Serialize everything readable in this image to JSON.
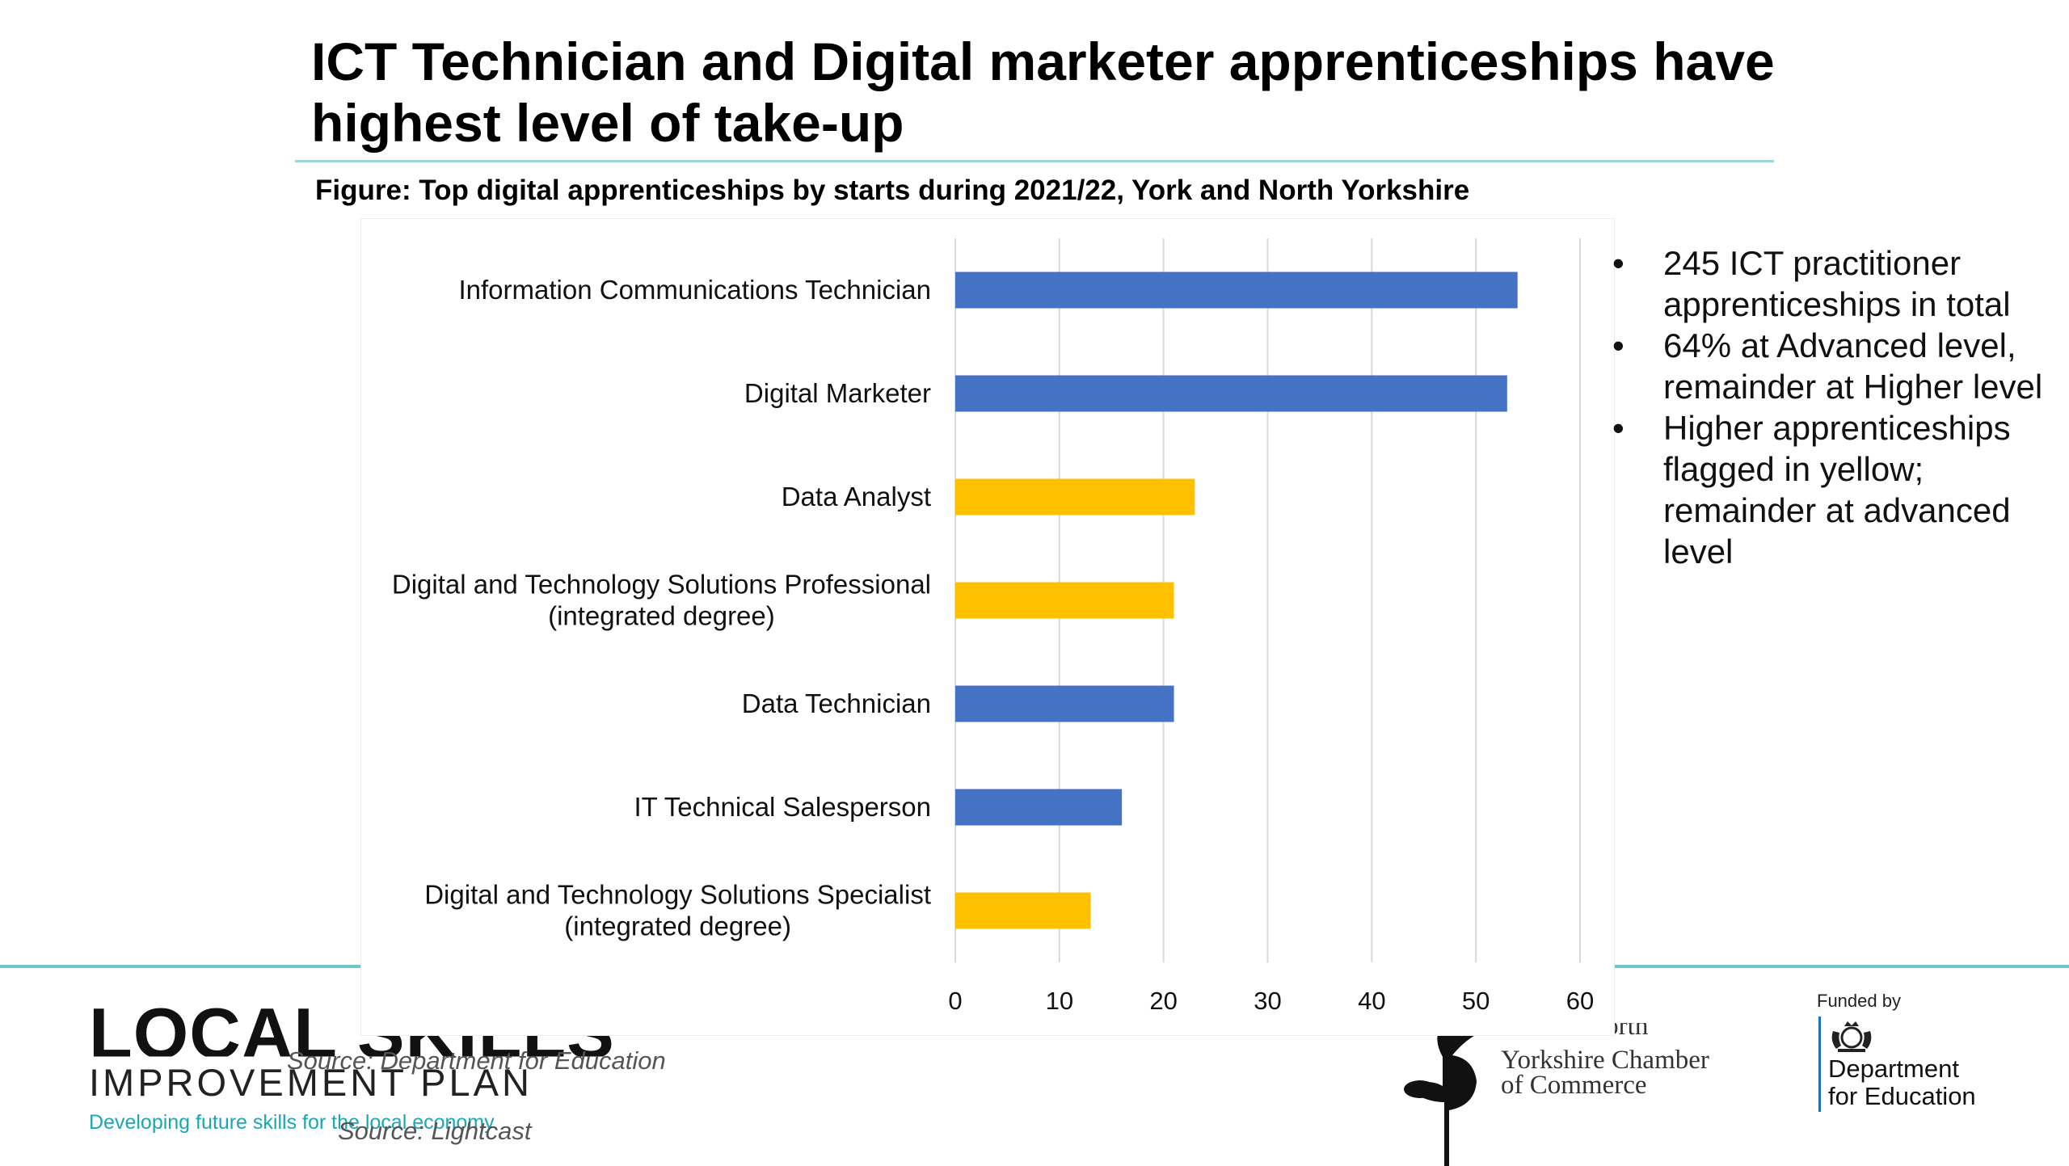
{
  "slide": {
    "title": "ICT Technician and Digital marketer apprenticeships have highest level of take-up",
    "figure_caption": "Figure:  Top digital apprenticeships by starts during 2021/22, York and North Yorkshire",
    "notes": [
      "245 ICT practitioner apprenticeships in total",
      "64% at Advanced level, remainder at Higher level",
      "Higher apprenticeships flagged in yellow; remainder at advanced level"
    ],
    "bullet_glyph": "•",
    "source_1": "Source: Department for Education",
    "source_2": "Source: Lightcast"
  },
  "logos": {
    "lsip_line1": "LOCAL SKILLS",
    "lsip_line2": "IMPROVEMENT PLAN",
    "lsip_tagline": "Developing future skills for the local economy",
    "chamber_line1": "West & North",
    "chamber_line2": "Yorkshire Chamber",
    "chamber_line3": "of Commerce",
    "dfe_funded": "Funded by",
    "dfe_line1": "Department",
    "dfe_line2": "for Education"
  },
  "colors": {
    "advanced": "#4472c4",
    "higher": "#ffc000",
    "gridline": "#d9d9d9",
    "accent_rule": "#6cc7cc"
  },
  "chart_data": {
    "type": "bar",
    "orientation": "horizontal",
    "title": "",
    "xlabel": "",
    "ylabel": "",
    "xlim": [
      0,
      60
    ],
    "xticks": [
      0,
      10,
      20,
      30,
      40,
      50,
      60
    ],
    "grid": true,
    "legend": "none",
    "categories": [
      [
        "Information Communications Technician"
      ],
      [
        "Digital Marketer"
      ],
      [
        "Data Analyst"
      ],
      [
        "Digital and Technology Solutions Professional",
        "(integrated degree)"
      ],
      [
        "Data Technician"
      ],
      [
        "IT Technical Salesperson"
      ],
      [
        "Digital and Technology Solutions Specialist",
        "(integrated degree)"
      ]
    ],
    "values": [
      54,
      53,
      23,
      21,
      21,
      16,
      13
    ],
    "level": [
      "advanced",
      "advanced",
      "higher",
      "higher",
      "advanced",
      "advanced",
      "higher"
    ]
  }
}
